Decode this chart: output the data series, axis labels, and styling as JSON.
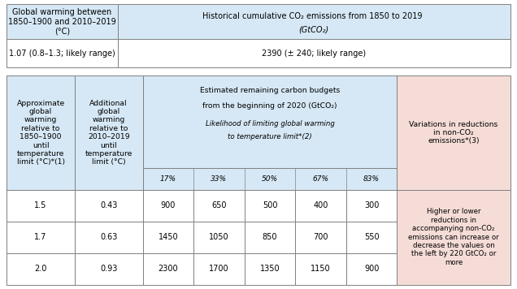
{
  "top_table": {
    "header1": "Global warming between\n1850–1900 and 2010–2019\n(°C)",
    "header2_line1": "Historical cumulative CO₂ emissions from 1850 to 2019 ",
    "header2_italic": "(GtCO₂)",
    "value1_pre": "1.07 (0.8–1.3; ",
    "value1_italic": "likely",
    "value1_post": " range)",
    "value2_pre": "2390 (± 240; ",
    "value2_italic": "likely",
    "value2_post": " range)",
    "header_bg": "#d6e8f5",
    "value_bg": "#ffffff"
  },
  "bottom_table": {
    "col1_header": "Approximate\nglobal\nwarming\nrelative to\n1850–1900\nuntil\ntemperature\nlimit (°C)*(1)",
    "col2_header": "Additional\nglobal\nwarming\nrelative to\n2010–2019\nuntil\ntemperature\nlimit (°C)",
    "col3_top1": "Estimated remaining carbon budgets",
    "col3_top2_pre": "from the beginning of 2020 ",
    "col3_top2_italic": "(GtCO₂)",
    "col3_mid1_italic": "Likelihood of limiting global warming",
    "col3_mid2_italic": "to temperature limit*(2)",
    "col4_header_line1": "Variations in reductions",
    "col4_header_line2": "in non-CO₂",
    "col4_header_line3": "emissions*(3)",
    "likelihood_labels": [
      "17%",
      "33%",
      "50%",
      "67%",
      "83%"
    ],
    "col1_header_bg": "#d6e8f5",
    "col2_header_bg": "#d6e8f5",
    "col3_header_bg": "#d6e8f5",
    "col4_header_bg": "#f5dcd7",
    "col4_value_bg": "#f5dcd7",
    "data_bg": "#ffffff",
    "rows": [
      {
        "temp": "1.5",
        "add_warming": "0.43",
        "budgets": [
          "900",
          "650",
          "500",
          "400",
          "300"
        ]
      },
      {
        "temp": "1.7",
        "add_warming": "0.63",
        "budgets": [
          "1450",
          "1050",
          "850",
          "700",
          "550"
        ]
      },
      {
        "temp": "2.0",
        "add_warming": "0.93",
        "budgets": [
          "2300",
          "1700",
          "1350",
          "1150",
          "900"
        ]
      }
    ],
    "col4_value_line1": "Higher or lower",
    "col4_value_line2": "reductions in",
    "col4_value_line3": "accompanying non-CO₂",
    "col4_value_line4": "emissions can increase or",
    "col4_value_line5": "decrease the values on",
    "col4_value_line6": "the left by 220 GtCO₂ or",
    "col4_value_line7": "more"
  },
  "border_color": "#808080",
  "font_size": 7.0,
  "figsize": [
    6.36,
    3.56
  ],
  "dpi": 100
}
